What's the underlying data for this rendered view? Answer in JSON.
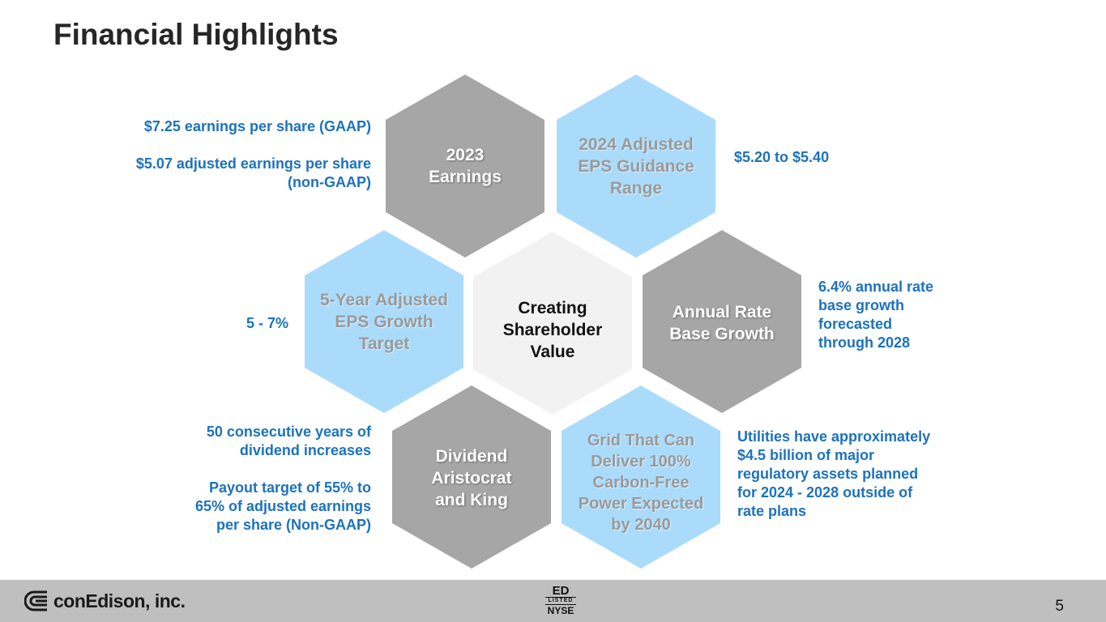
{
  "title": "Financial Highlights",
  "colors": {
    "gray_hex": "#a6a6a6",
    "blue_hex": "#aadbfb",
    "center_hex": "#f2f2f2",
    "note_text": "#1c72bd",
    "footer": "#bfbfbf"
  },
  "hexagons": {
    "earnings_2023": "2023\nEarnings",
    "guidance_2024": "2024 Adjusted\nEPS Guidance\nRange",
    "eps_growth_target": "5-Year Adjusted\nEPS Growth\nTarget",
    "center": "Creating\nShareholder\nValue",
    "rate_base_growth": "Annual Rate\nBase Growth",
    "dividend": "Dividend\nAristocrat\nand King",
    "grid": "Grid That Can\nDeliver 100%\nCarbon-Free\nPower Expected\nby 2040"
  },
  "notes": {
    "earnings_gaap": "$7.25 earnings per share (GAAP)",
    "earnings_adjusted": "$5.07 adjusted earnings per share\n(non-GAAP)",
    "guidance": "$5.20 to $5.40",
    "eps_growth": "5 - 7%",
    "rate_base": "6.4% annual rate\nbase growth\nforecasted\nthrough 2028",
    "dividend_years": "50 consecutive years of\ndividend increases",
    "payout": "Payout target of 55% to\n65% of adjusted earnings\nper share (Non-GAAP)",
    "regulatory": "Utilities have approximately\n$4.5 billion of major\nregulatory assets planned\nfor 2024 - 2028 outside of\nrate plans"
  },
  "footer": {
    "logo": "conEdison, inc.",
    "logo_icon": "con-edison-c-icon",
    "exchange_ticker": "ED",
    "exchange_listed": "LISTED",
    "exchange_name": "NYSE",
    "page_number": "5"
  }
}
